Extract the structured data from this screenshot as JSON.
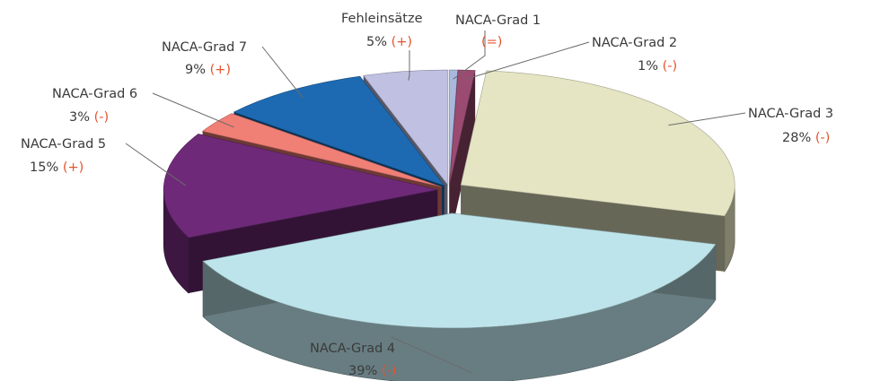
{
  "chart_data": {
    "type": "pie",
    "style": "3d-exploded",
    "title": "",
    "slices": [
      {
        "label": "NACA-Grad 1",
        "value": 0.5,
        "percent_text": "",
        "change": "(=)",
        "top_color": "#a9b8dc"
      },
      {
        "label": "NACA-Grad 2",
        "value": 1,
        "percent_text": "1%",
        "change": "(-)",
        "top_color": "#9b4b72"
      },
      {
        "label": "NACA-Grad 3",
        "value": 28,
        "percent_text": "28%",
        "change": "(-)",
        "top_color": "#e5e5c3"
      },
      {
        "label": "NACA-Grad 4",
        "value": 39,
        "percent_text": "39%",
        "change": "(-)",
        "top_color": "#bde4ea"
      },
      {
        "label": "NACA-Grad 5",
        "value": 15,
        "percent_text": "15%",
        "change": "(+)",
        "top_color": "#6e2a78"
      },
      {
        "label": "NACA-Grad 6",
        "value": 3,
        "percent_text": "3%",
        "change": "(-)",
        "top_color": "#f07f76"
      },
      {
        "label": "NACA-Grad 7",
        "value": 9,
        "percent_text": "9%",
        "change": "(+)",
        "top_color": "#1d6ab2"
      },
      {
        "label": "Fehleinsätze",
        "value": 5,
        "percent_text": "5%",
        "change": "(+)",
        "top_color": "#c0c0e2"
      }
    ],
    "change_color": "#e4542e",
    "legend": "none"
  }
}
